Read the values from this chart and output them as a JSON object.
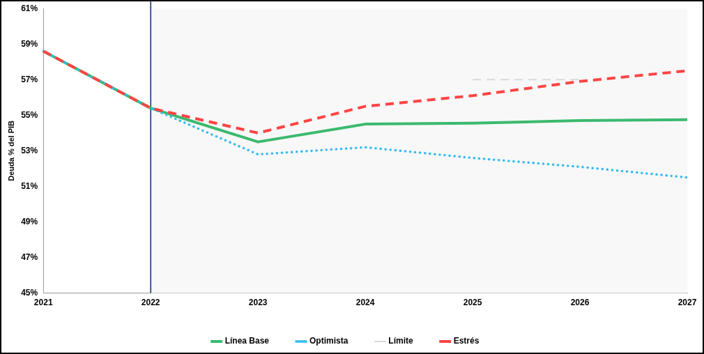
{
  "chart_data": {
    "type": "line",
    "ylabel": "Deuda % del PIB",
    "categories": [
      "2021",
      "2022",
      "2023",
      "2024",
      "2025",
      "2026",
      "2027"
    ],
    "series": [
      {
        "name": "Línea Base",
        "color": "#3cb96e",
        "line_style": "solid",
        "values": [
          58.6,
          55.4,
          53.5,
          54.5,
          54.55,
          54.7,
          54.75
        ]
      },
      {
        "name": "Optimista",
        "color": "#33bbee",
        "line_style": "dotted",
        "values": [
          58.6,
          55.4,
          52.8,
          53.2,
          52.6,
          52.1,
          51.5
        ]
      },
      {
        "name": "Límite",
        "color": "#d9d9d9",
        "line_style": "dashed",
        "values": [
          null,
          null,
          null,
          null,
          57.0,
          57.0,
          null
        ]
      },
      {
        "name": "Estrés",
        "color": "#ff4444",
        "line_style": "dashed",
        "values": [
          58.6,
          55.4,
          54.0,
          55.5,
          56.1,
          56.9,
          57.5
        ]
      }
    ],
    "ylim": [
      45,
      61
    ],
    "yticks": [
      {
        "value": 45,
        "label": "45%"
      },
      {
        "value": 47,
        "label": "47%"
      },
      {
        "value": 49,
        "label": "49%"
      },
      {
        "value": 51,
        "label": "51%"
      },
      {
        "value": 53,
        "label": "53%"
      },
      {
        "value": 55,
        "label": "55%"
      },
      {
        "value": 57,
        "label": "57%"
      },
      {
        "value": 59,
        "label": "59%"
      },
      {
        "value": 61,
        "label": "61%"
      }
    ],
    "bands": [
      {
        "axis": "x",
        "from": "2022",
        "to": "2027",
        "color": "#f8f8f8"
      }
    ],
    "ref_lines": [
      {
        "axis": "x",
        "value": "2022",
        "color": "#3b5a8a",
        "line_style": "solid"
      }
    ],
    "grid": false,
    "legend": "bottom",
    "marker": "none"
  }
}
